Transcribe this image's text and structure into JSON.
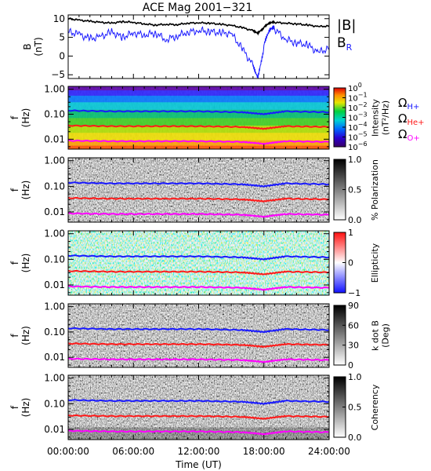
{
  "title": "ACE Mag 2001−321",
  "colors": {
    "magnitude": "#000000",
    "radial": "#1a1aff",
    "h_plus": "#1a1aff",
    "he_plus": "#ff1a1a",
    "o_plus": "#ff00ff"
  },
  "legend": {
    "magnitude": "|B|",
    "radial_base": "B",
    "radial_sub": "R",
    "omega": "Ω",
    "h_sub": "H+",
    "he_sub": "He+",
    "o_sub": "O+"
  },
  "x_axis": {
    "label": "Time (UT)",
    "ticks": [
      "00:00:00",
      "06:00:00",
      "12:00:00",
      "18:00:00",
      "24:00:00"
    ],
    "range_hours": [
      0,
      24
    ]
  },
  "chart_data": [
    {
      "type": "line",
      "title": "ACE Mag 2001−321",
      "ylabel_lines": [
        "B",
        "(nT)"
      ],
      "ylim": [
        -6,
        11
      ],
      "yticks": [
        10,
        5,
        0,
        -5
      ],
      "ytick_labels": [
        "10",
        "5",
        "0",
        "−5"
      ],
      "x_hours": [
        0,
        1,
        2,
        3,
        4,
        5,
        6,
        7,
        8,
        9,
        10,
        11,
        12,
        13,
        14,
        15,
        16,
        17,
        17.5,
        18,
        18.5,
        19,
        20,
        21,
        22,
        23,
        24
      ],
      "series": [
        {
          "name": "|B|",
          "values": [
            10,
            9.6,
            9.3,
            9.0,
            8.8,
            9.2,
            9.0,
            8.6,
            8.3,
            8.5,
            8.4,
            8.8,
            8.9,
            8.8,
            8.5,
            8.2,
            7.6,
            6.8,
            6.2,
            7.6,
            8.8,
            9.0,
            8.8,
            8.6,
            8.3,
            7.9,
            8.0
          ]
        },
        {
          "name": "B_R",
          "values": [
            6.5,
            5.8,
            4.6,
            5.2,
            6.4,
            5.0,
            6.2,
            5.6,
            6.2,
            4.4,
            5.4,
            6.4,
            6.8,
            6.6,
            6.2,
            6.0,
            2.0,
            -2.5,
            -5.5,
            2.5,
            6.8,
            7.2,
            4.5,
            3.5,
            3.0,
            1.0,
            2.0
          ]
        }
      ]
    },
    {
      "type": "heatmap",
      "ylabel_lines": [
        "f",
        "(Hz)"
      ],
      "yticks": [
        "1.00",
        "0.10",
        "0.01"
      ],
      "colorbar": {
        "type": "rainbow",
        "label_lines": [
          "Intensity",
          "(nT²/Hz)"
        ],
        "tick_base": "10",
        "tick_exponents": [
          "0",
          "−1",
          "−2",
          "−3",
          "−4",
          "−5",
          "−6"
        ]
      },
      "series": [
        {
          "name": "ΩH+",
          "x_hours": [
            0,
            4,
            8,
            12,
            16,
            18,
            20,
            24
          ],
          "values": [
            0.14,
            0.13,
            0.13,
            0.13,
            0.12,
            0.1,
            0.13,
            0.12
          ]
        },
        {
          "name": "ΩHe+",
          "x_hours": [
            0,
            4,
            8,
            12,
            16,
            18,
            20,
            24
          ],
          "values": [
            0.035,
            0.033,
            0.033,
            0.033,
            0.031,
            0.026,
            0.033,
            0.031
          ]
        },
        {
          "name": "ΩO+",
          "x_hours": [
            0,
            4,
            8,
            12,
            16,
            18,
            20,
            24
          ],
          "values": [
            0.0088,
            0.0083,
            0.0083,
            0.0083,
            0.0078,
            0.0065,
            0.0083,
            0.0078
          ]
        }
      ]
    },
    {
      "type": "heatmap",
      "ylabel_lines": [
        "f",
        "(Hz)"
      ],
      "yticks": [
        "1.00",
        "0.10",
        "0.01"
      ],
      "colorbar": {
        "type": "grayscale",
        "label_lines": [
          "% Polarization"
        ],
        "tick_labels": [
          "1.0",
          "0.5",
          "0.0"
        ]
      }
    },
    {
      "type": "heatmap",
      "ylabel_lines": [
        "f",
        "(Hz)"
      ],
      "yticks": [
        "1.00",
        "0.10",
        "0.01"
      ],
      "colorbar": {
        "type": "bluewhitered",
        "label_lines": [
          "Ellipticity"
        ],
        "tick_labels": [
          "1",
          "0",
          "−1"
        ]
      }
    },
    {
      "type": "heatmap",
      "ylabel_lines": [
        "f",
        "(Hz)"
      ],
      "yticks": [
        "1.00",
        "0.10",
        "0.01"
      ],
      "colorbar": {
        "type": "grayscale",
        "label_lines": [
          "k dot B",
          "(Deg)"
        ],
        "tick_labels": [
          "90",
          "60",
          "30",
          "0"
        ]
      }
    },
    {
      "type": "heatmap",
      "ylabel_lines": [
        "f",
        "(Hz)"
      ],
      "yticks": [
        "1.00",
        "0.10",
        "0.01"
      ],
      "colorbar": {
        "type": "grayscale",
        "label_lines": [
          "Coherency"
        ],
        "tick_labels": [
          "1.0",
          "0.5",
          "0.0"
        ]
      }
    }
  ]
}
